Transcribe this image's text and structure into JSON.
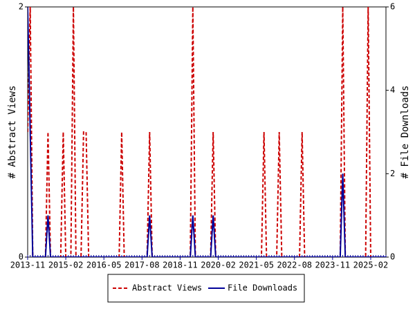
{
  "chart_data": {
    "type": "line",
    "y_label": "# Abstract Views",
    "y2_label": "# File Downloads",
    "categories": [
      "2013-11",
      null,
      null,
      null,
      null,
      null,
      null,
      null,
      null,
      null,
      null,
      null,
      null,
      null,
      null,
      "2015-02",
      null,
      null,
      null,
      null,
      null,
      null,
      null,
      null,
      null,
      null,
      null,
      null,
      null,
      null,
      "2016-05",
      null,
      null,
      null,
      null,
      null,
      null,
      null,
      null,
      null,
      null,
      null,
      null,
      null,
      null,
      "2017-08",
      null,
      null,
      null,
      null,
      null,
      null,
      null,
      null,
      null,
      null,
      null,
      null,
      null,
      null,
      "2018-11",
      null,
      null,
      null,
      null,
      null,
      null,
      null,
      null,
      null,
      null,
      null,
      null,
      null,
      null,
      "2020-02",
      null,
      null,
      null,
      null,
      null,
      null,
      null,
      null,
      null,
      null,
      null,
      null,
      null,
      null,
      "2021-05",
      null,
      null,
      null,
      null,
      null,
      null,
      null,
      null,
      null,
      null,
      null,
      null,
      null,
      null,
      "2022-08",
      null,
      null,
      null,
      null,
      null,
      null,
      null,
      null,
      null,
      null,
      null,
      null,
      null,
      null,
      "2023-11",
      null,
      null,
      null,
      null,
      null,
      null,
      null,
      null,
      null,
      null,
      null,
      null,
      null,
      null,
      "2025-02",
      null,
      null,
      null,
      null,
      null,
      null
    ],
    "series": [
      {
        "name": "Abstract Views",
        "color": "#cc0000",
        "dash": true,
        "axis": "y",
        "values": [
          1,
          2,
          0,
          0,
          0,
          0,
          0,
          0,
          1,
          0,
          0,
          0,
          0,
          0,
          1,
          0,
          0,
          0,
          2,
          0,
          0,
          0,
          1,
          1,
          0,
          0,
          0,
          0,
          0,
          0,
          0,
          0,
          0,
          0,
          0,
          0,
          0,
          1,
          0,
          0,
          0,
          0,
          0,
          0,
          0,
          0,
          0,
          0,
          1,
          0,
          0,
          0,
          0,
          0,
          0,
          0,
          0,
          0,
          0,
          0,
          0,
          0,
          0,
          0,
          0,
          2,
          0,
          0,
          0,
          0,
          0,
          0,
          0,
          1,
          0,
          0,
          0,
          0,
          0,
          0,
          0,
          0,
          0,
          0,
          0,
          0,
          0,
          0,
          0,
          0,
          0,
          0,
          0,
          1,
          0,
          0,
          0,
          0,
          0,
          1,
          0,
          0,
          0,
          0,
          0,
          0,
          0,
          0,
          1,
          0,
          0,
          0,
          0,
          0,
          0,
          0,
          0,
          0,
          0,
          0,
          0,
          0,
          0,
          0,
          2,
          0,
          0,
          0,
          0,
          0,
          0,
          0,
          0,
          0,
          2,
          0,
          0,
          0,
          0,
          0,
          0,
          0
        ]
      },
      {
        "name": "File Downloads",
        "color": "#000099",
        "dash": false,
        "axis": "y2",
        "values": [
          6,
          3,
          0,
          0,
          0,
          0,
          0,
          0,
          1,
          0,
          0,
          0,
          0,
          0,
          0,
          0,
          0,
          0,
          0,
          0,
          0,
          0,
          0,
          0,
          0,
          0,
          0,
          0,
          0,
          0,
          0,
          0,
          0,
          0,
          0,
          0,
          0,
          0,
          0,
          0,
          0,
          0,
          0,
          0,
          0,
          0,
          0,
          0,
          1,
          0,
          0,
          0,
          0,
          0,
          0,
          0,
          0,
          0,
          0,
          0,
          0,
          0,
          0,
          0,
          0,
          1,
          0,
          0,
          0,
          0,
          0,
          0,
          0,
          1,
          0,
          0,
          0,
          0,
          0,
          0,
          0,
          0,
          0,
          0,
          0,
          0,
          0,
          0,
          0,
          0,
          0,
          0,
          0,
          0,
          0,
          0,
          0,
          0,
          0,
          0,
          0,
          0,
          0,
          0,
          0,
          0,
          0,
          0,
          0,
          0,
          0,
          0,
          0,
          0,
          0,
          0,
          0,
          0,
          0,
          0,
          0,
          0,
          0,
          0,
          2,
          0,
          0,
          0,
          0,
          0,
          0,
          0,
          0,
          0,
          0,
          0,
          0,
          0,
          0,
          0,
          0,
          0
        ]
      }
    ],
    "ylim": [
      0,
      2
    ],
    "yticks": [
      0,
      2
    ],
    "y2lim": [
      0,
      6
    ],
    "y2ticks": [
      0,
      2,
      4,
      6
    ]
  }
}
